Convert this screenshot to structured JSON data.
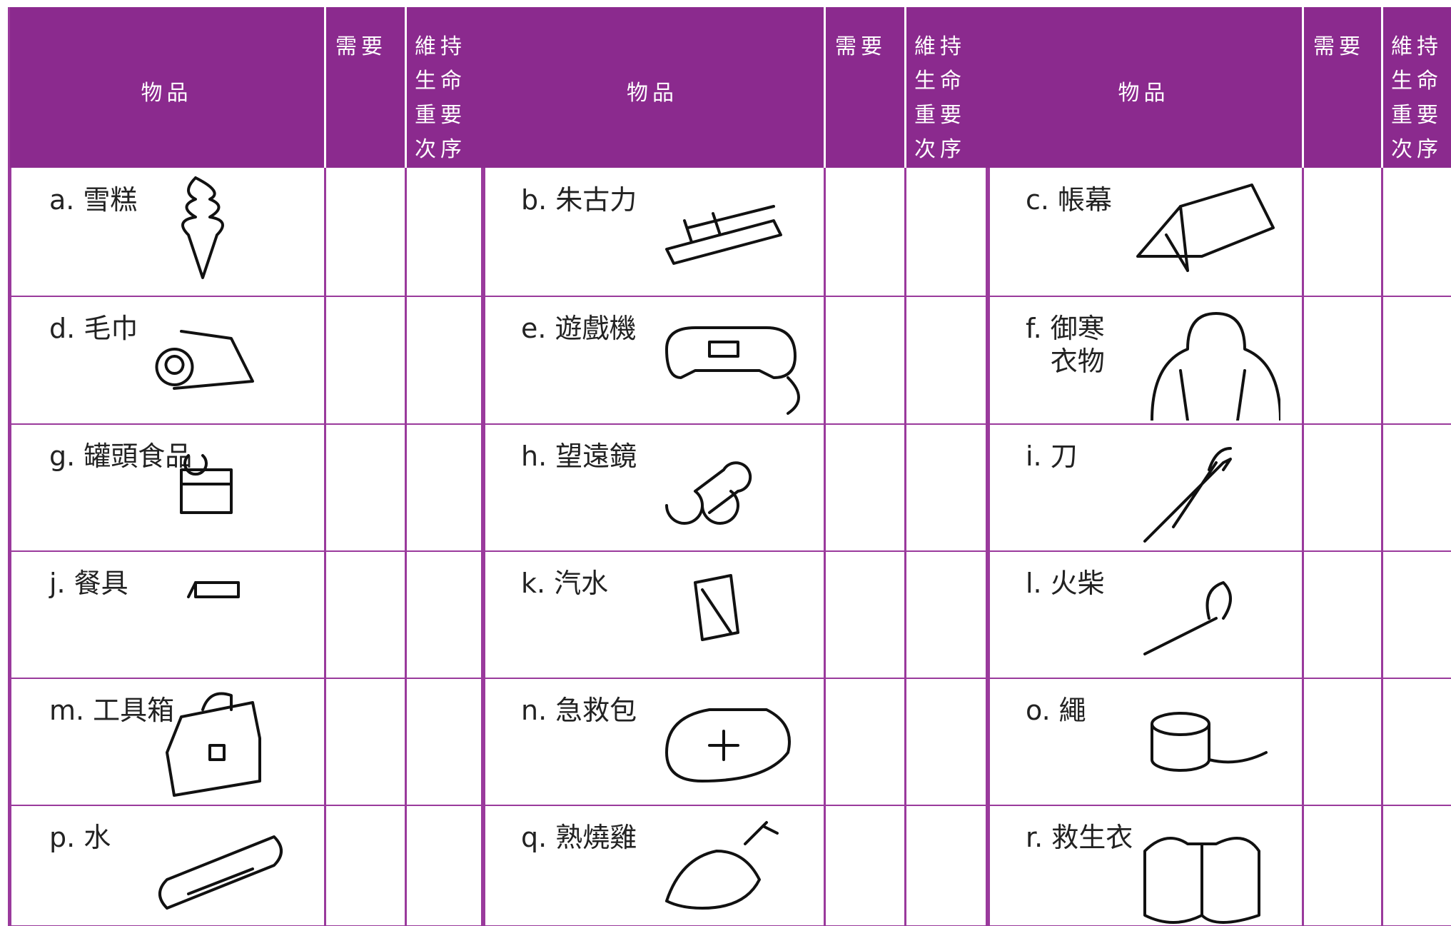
{
  "groups": [
    {
      "item_header": "物品",
      "need_header": "需要",
      "order_header": [
        "維持",
        "生命",
        "重要",
        "次序"
      ],
      "items": [
        {
          "letter": "a.",
          "name": "雪糕"
        },
        {
          "letter": "d.",
          "name": "毛巾"
        },
        {
          "letter": "g.",
          "name": "罐頭食品"
        },
        {
          "letter": "j.",
          "name": "餐具"
        },
        {
          "letter": "m.",
          "name": "工具箱"
        },
        {
          "letter": "p.",
          "name": "水"
        }
      ]
    },
    {
      "item_header": "物品",
      "need_header": "需要",
      "order_header": [
        "維持",
        "生命",
        "重要",
        "次序"
      ],
      "items": [
        {
          "letter": "b.",
          "name": "朱古力"
        },
        {
          "letter": "e.",
          "name": "遊戲機"
        },
        {
          "letter": "h.",
          "name": "望遠鏡"
        },
        {
          "letter": "k.",
          "name": "汽水"
        },
        {
          "letter": "n.",
          "name": "急救包"
        },
        {
          "letter": "q.",
          "name": "熟燒雞"
        }
      ]
    },
    {
      "item_header": "物品",
      "need_header": "需要",
      "order_header": [
        "維持",
        "生命",
        "重要",
        "次序"
      ],
      "items": [
        {
          "letter": "c.",
          "name": "帳幕"
        },
        {
          "letter": "f.",
          "name": "御寒\n衣物"
        },
        {
          "letter": "i.",
          "name": "刀"
        },
        {
          "letter": "l.",
          "name": "火柴"
        },
        {
          "letter": "o.",
          "name": "繩"
        },
        {
          "letter": "r.",
          "name": "救生衣"
        }
      ]
    }
  ]
}
